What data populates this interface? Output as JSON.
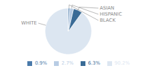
{
  "chart_data": {
    "type": "pie",
    "categories": [
      "WHITE",
      "ASIAN",
      "HISPANIC",
      "BLACK"
    ],
    "values": [
      90.2,
      6.3,
      2.7,
      0.9
    ],
    "value_labels": [
      "90.2%",
      "6.3%",
      "2.7%",
      "0.9%"
    ],
    "colors": [
      "#dce6f1",
      "#3a6b96",
      "#b8cce4",
      "#4a7aaa"
    ],
    "legend": "bottom"
  }
}
